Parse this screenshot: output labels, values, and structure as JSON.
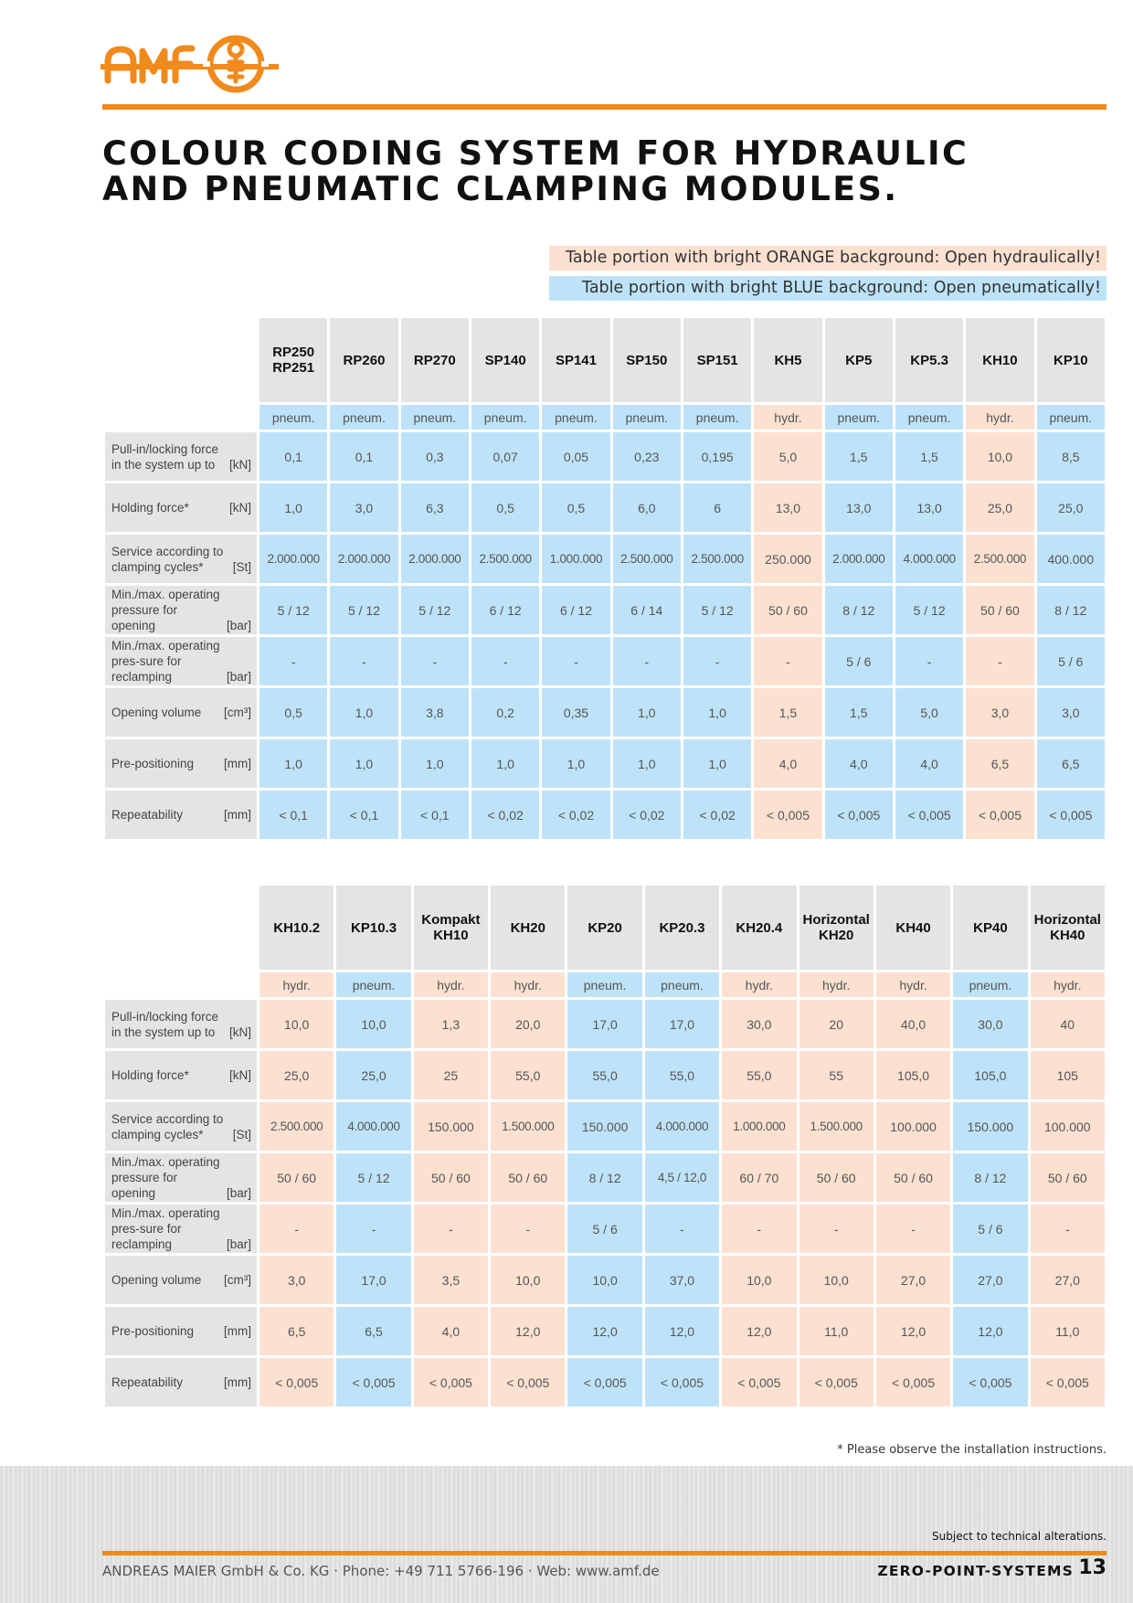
{
  "brand": {
    "logo_text": "amf",
    "accent_color": "#f08a1c"
  },
  "title": {
    "line1": "COLOUR CODING SYSTEM FOR HYDRAULIC",
    "line2": "AND PNEUMATIC CLAMPING MODULES."
  },
  "legend": {
    "orange": "Table portion with bright ORANGE background: Open hydraulically!",
    "blue": "Table portion with bright BLUE background: Open pneumatically!",
    "orange_color": "#fce1d1",
    "blue_color": "#bee3f8"
  },
  "rows": [
    {
      "label": "Pull-in/locking force in the system up to",
      "unit": "[kN]"
    },
    {
      "label": "Holding force*",
      "unit": "[kN]"
    },
    {
      "label": "Service according to clamping cycles*",
      "unit": "[St]"
    },
    {
      "label": "Min./max. operating pressure for opening",
      "unit": "[bar]"
    },
    {
      "label": "Min./max. operating pres-sure for reclamping",
      "unit": "[bar]"
    },
    {
      "label": "Opening volume",
      "unit": "[cm³]"
    },
    {
      "label": "Pre-positioning",
      "unit": "[mm]"
    },
    {
      "label": "Repeatability",
      "unit": "[mm]"
    }
  ],
  "tables": [
    {
      "columns": [
        {
          "name": "RP250 RP251",
          "type": "pneum.",
          "values": [
            "0,1",
            "1,0",
            "2.000.000",
            "5 / 12",
            "-",
            "0,5",
            "1,0",
            "< 0,1"
          ]
        },
        {
          "name": "RP260",
          "type": "pneum.",
          "values": [
            "0,1",
            "3,0",
            "2.000.000",
            "5 / 12",
            "-",
            "1,0",
            "1,0",
            "< 0,1"
          ]
        },
        {
          "name": "RP270",
          "type": "pneum.",
          "values": [
            "0,3",
            "6,3",
            "2.000.000",
            "5 / 12",
            "-",
            "3,8",
            "1,0",
            "< 0,1"
          ]
        },
        {
          "name": "SP140",
          "type": "pneum.",
          "values": [
            "0,07",
            "0,5",
            "2.500.000",
            "6 / 12",
            "-",
            "0,2",
            "1,0",
            "< 0,02"
          ]
        },
        {
          "name": "SP141",
          "type": "pneum.",
          "values": [
            "0,05",
            "0,5",
            "1.000.000",
            "6 / 12",
            "-",
            "0,35",
            "1,0",
            "< 0,02"
          ]
        },
        {
          "name": "SP150",
          "type": "pneum.",
          "values": [
            "0,23",
            "6,0",
            "2.500.000",
            "6 / 14",
            "-",
            "1,0",
            "1,0",
            "< 0,02"
          ]
        },
        {
          "name": "SP151",
          "type": "pneum.",
          "values": [
            "0,195",
            "6",
            "2.500.000",
            "5 / 12",
            "-",
            "1,0",
            "1,0",
            "< 0,02"
          ]
        },
        {
          "name": "KH5",
          "type": "hydr.",
          "values": [
            "5,0",
            "13,0",
            "250.000",
            "50 / 60",
            "-",
            "1,5",
            "4,0",
            "< 0,005"
          ]
        },
        {
          "name": "KP5",
          "type": "pneum.",
          "values": [
            "1,5",
            "13,0",
            "2.000.000",
            "8 / 12",
            "5 / 6",
            "1,5",
            "4,0",
            "< 0,005"
          ]
        },
        {
          "name": "KP5.3",
          "type": "pneum.",
          "values": [
            "1,5",
            "13,0",
            "4.000.000",
            "5 / 12",
            "-",
            "5,0",
            "4,0",
            "< 0,005"
          ]
        },
        {
          "name": "KH10",
          "type": "hydr.",
          "values": [
            "10,0",
            "25,0",
            "2.500.000",
            "50 / 60",
            "-",
            "3,0",
            "6,5",
            "< 0,005"
          ]
        },
        {
          "name": "KP10",
          "type": "pneum.",
          "values": [
            "8,5",
            "25,0",
            "400.000",
            "8 / 12",
            "5 / 6",
            "3,0",
            "6,5",
            "< 0,005"
          ]
        }
      ]
    },
    {
      "columns": [
        {
          "name": "KH10.2",
          "type": "hydr.",
          "values": [
            "10,0",
            "25,0",
            "2.500.000",
            "50 / 60",
            "-",
            "3,0",
            "6,5",
            "< 0,005"
          ]
        },
        {
          "name": "KP10.3",
          "type": "pneum.",
          "values": [
            "10,0",
            "25,0",
            "4.000.000",
            "5 / 12",
            "-",
            "17,0",
            "6,5",
            "< 0,005"
          ]
        },
        {
          "name": "Kompakt KH10",
          "type": "hydr.",
          "values": [
            "1,3",
            "25",
            "150.000",
            "50 / 60",
            "-",
            "3,5",
            "4,0",
            "< 0,005"
          ]
        },
        {
          "name": "KH20",
          "type": "hydr.",
          "values": [
            "20,0",
            "55,0",
            "1.500.000",
            "50 / 60",
            "-",
            "10,0",
            "12,0",
            "< 0,005"
          ]
        },
        {
          "name": "KP20",
          "type": "pneum.",
          "values": [
            "17,0",
            "55,0",
            "150.000",
            "8 / 12",
            "5 / 6",
            "10,0",
            "12,0",
            "< 0,005"
          ]
        },
        {
          "name": "KP20.3",
          "type": "pneum.",
          "values": [
            "17,0",
            "55,0",
            "4.000.000",
            "4,5 / 12,0",
            "-",
            "37,0",
            "12,0",
            "< 0,005"
          ]
        },
        {
          "name": "KH20.4",
          "type": "hydr.",
          "values": [
            "30,0",
            "55,0",
            "1.000.000",
            "60 / 70",
            "-",
            "10,0",
            "12,0",
            "< 0,005"
          ]
        },
        {
          "name": "Horizontal KH20",
          "type": "hydr.",
          "values": [
            "20",
            "55",
            "1.500.000",
            "50 / 60",
            "-",
            "10,0",
            "11,0",
            "< 0,005"
          ]
        },
        {
          "name": "KH40",
          "type": "hydr.",
          "values": [
            "40,0",
            "105,0",
            "100.000",
            "50 / 60",
            "-",
            "27,0",
            "12,0",
            "< 0,005"
          ]
        },
        {
          "name": "KP40",
          "type": "pneum.",
          "values": [
            "30,0",
            "105,0",
            "150.000",
            "8 / 12",
            "5 / 6",
            "27,0",
            "12,0",
            "< 0,005"
          ]
        },
        {
          "name": "Horizontal KH40",
          "type": "hydr.",
          "values": [
            "40",
            "105",
            "100.000",
            "50 / 60",
            "-",
            "27,0",
            "11,0",
            "< 0,005"
          ]
        }
      ]
    }
  ],
  "footnote": "* Please observe the installation instructions.",
  "footer": {
    "subject": "Subject to technical alterations.",
    "company": "ANDREAS MAIER GmbH & Co. KG · Phone: +49 711 5766-196 · Web: www.amf.de",
    "section": "ZERO-POINT-SYSTEMS",
    "page": "13"
  }
}
